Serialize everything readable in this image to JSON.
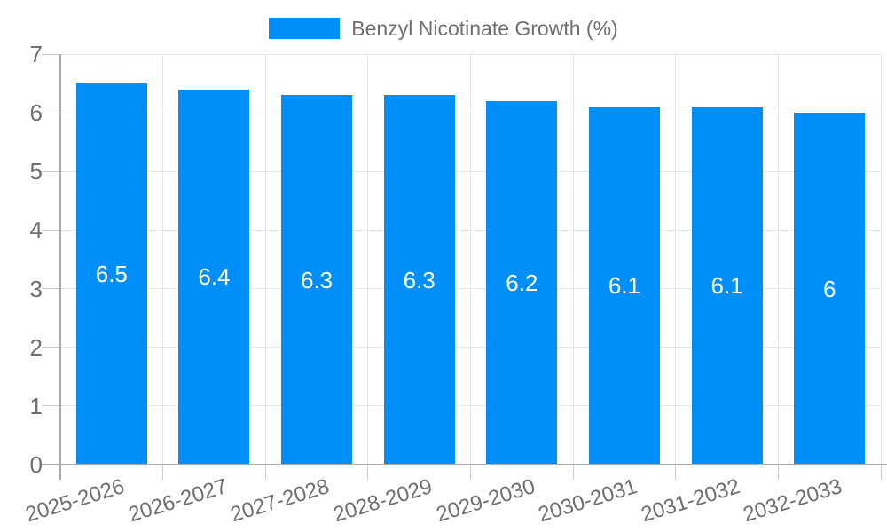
{
  "chart_data": {
    "type": "bar",
    "title": "Benzyl Nicotinate Growth (%)",
    "categories": [
      "2025-2026",
      "2026-2027",
      "2027-2028",
      "2028-2029",
      "2029-2030",
      "2030-2031",
      "2031-2032",
      "2032-2033"
    ],
    "values": [
      6.5,
      6.4,
      6.3,
      6.3,
      6.2,
      6.1,
      6.1,
      6
    ],
    "value_labels": [
      "6.5",
      "6.4",
      "6.3",
      "6.3",
      "6.2",
      "6.1",
      "6.1",
      "6"
    ],
    "xlabel": "",
    "ylabel": "",
    "ylim": [
      0,
      7
    ],
    "y_ticks": [
      0,
      1,
      2,
      3,
      4,
      5,
      6,
      7
    ],
    "grid": true,
    "legend": {
      "position": "top-center",
      "label": "Benzyl Nicotinate Growth (%)"
    },
    "colors": {
      "bar": "#008FF8",
      "bar_value_text": "#FFFFFF",
      "axis_text": "#6D6F71",
      "grid_line": "#E6E6E6",
      "axis_line": "#A9ABAD",
      "tick_line": "#C9CBCD",
      "background": "#FFFFFF"
    }
  }
}
